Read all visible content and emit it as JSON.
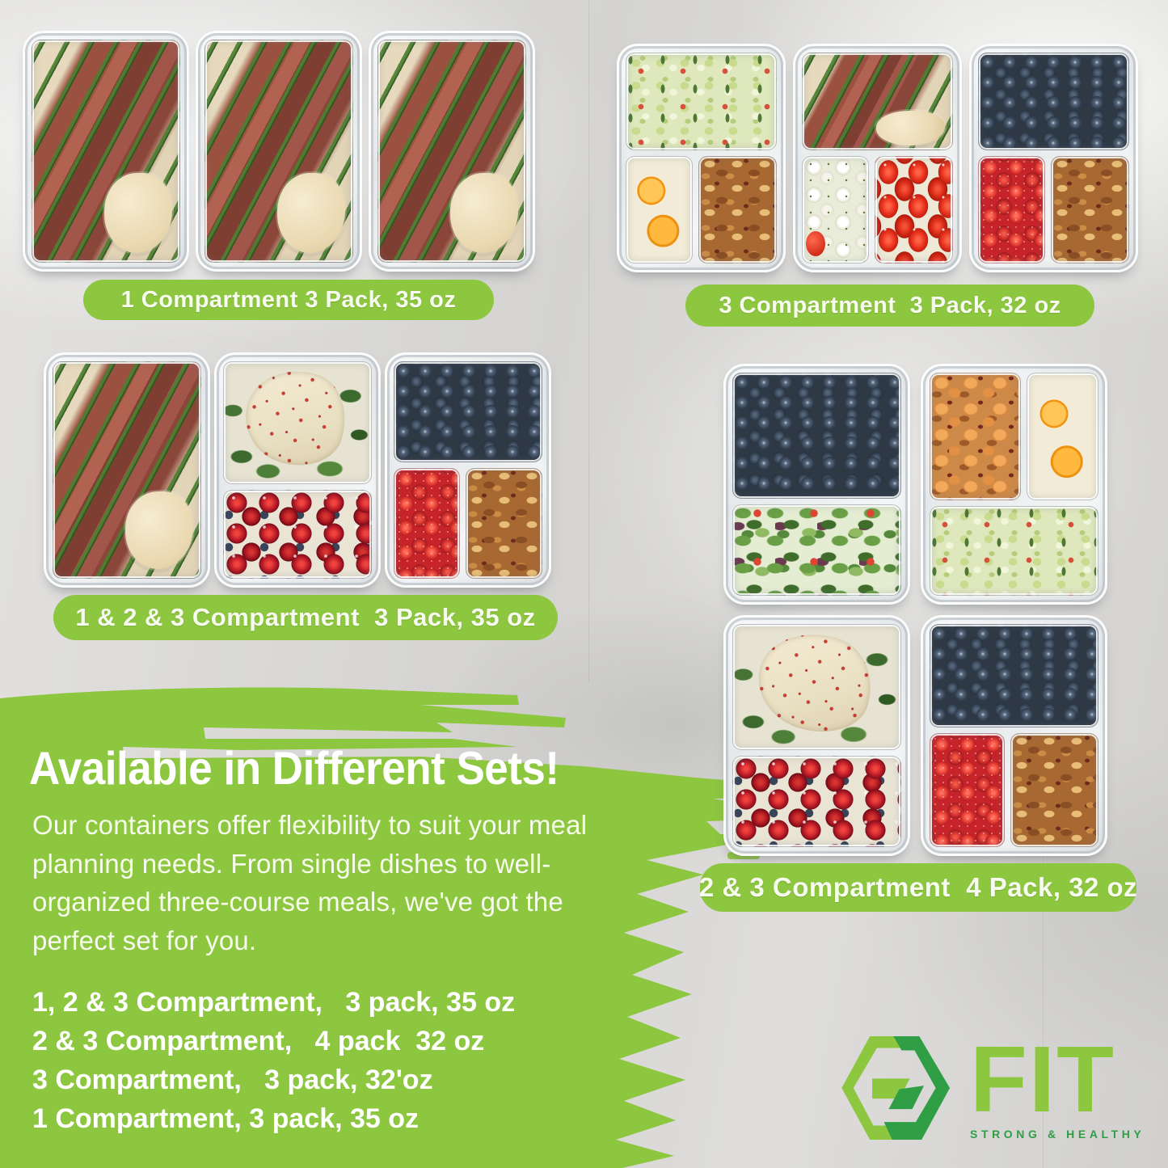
{
  "colors": {
    "accent_green": "#8dc63f",
    "logo_dark_green": "#2f9e44",
    "background_gray": "#d9d8d6"
  },
  "sets": [
    {
      "label": "1 Compartment 3 Pack, 35 oz",
      "containers": [
        {
          "layout": "one",
          "foods": [
            "steak-green-beans-mash"
          ]
        },
        {
          "layout": "one",
          "foods": [
            "steak-green-beans-mash"
          ]
        },
        {
          "layout": "one",
          "foods": [
            "steak-green-beans-mash"
          ]
        }
      ]
    },
    {
      "label": "3 Compartment  3 Pack, 32 oz",
      "containers": [
        {
          "layout": "three",
          "foods": [
            "cucumber-salad",
            "orange-slices",
            "trail-mix"
          ]
        },
        {
          "layout": "three",
          "foods": [
            "steak-green-beans-mash",
            "mozzarella-balls",
            "cherry-tomatoes"
          ]
        },
        {
          "layout": "three",
          "foods": [
            "blueberries",
            "raspberries",
            "trail-mix"
          ]
        }
      ]
    },
    {
      "label": "1 & 2 & 3 Compartment  3 Pack, 35 oz",
      "containers": [
        {
          "layout": "one",
          "foods": [
            "steak-green-beans-mash"
          ]
        },
        {
          "layout": "two",
          "foods": [
            "chicken-cranberry-greens",
            "cherries-blueberries"
          ]
        },
        {
          "layout": "three",
          "foods": [
            "blueberries",
            "raspberries",
            "trail-mix"
          ]
        }
      ]
    },
    {
      "label": "2 & 3 Compartment  4 Pack, 32 oz",
      "containers": [
        {
          "layout": "two",
          "foods": [
            "blueberries",
            "spring-salad"
          ]
        },
        {
          "layout": "three-top",
          "foods": [
            "apricots-nuts",
            "orange-slices",
            "cucumber-salad"
          ]
        },
        {
          "layout": "two",
          "foods": [
            "chicken-cranberry-greens",
            "cherries-blueberries"
          ]
        },
        {
          "layout": "three",
          "foods": [
            "blueberries",
            "raspberries",
            "trail-mix"
          ]
        }
      ]
    }
  ],
  "promo": {
    "headline": "Available in Different Sets!",
    "body": "Our containers offer flexibility to suit your meal planning needs. From single dishes to well-organized three-course meals, we've got the perfect set for you.",
    "options": [
      "1, 2 & 3 Compartment,   3 pack, 35 oz",
      "2 & 3 Compartment,   4 pack  32 oz",
      "3 Compartment,   3 pack, 32'oz",
      "1 Compartment, 3 pack, 35 oz"
    ]
  },
  "logo": {
    "name": "FIT",
    "tagline": "STRONG & HEALTHY"
  }
}
